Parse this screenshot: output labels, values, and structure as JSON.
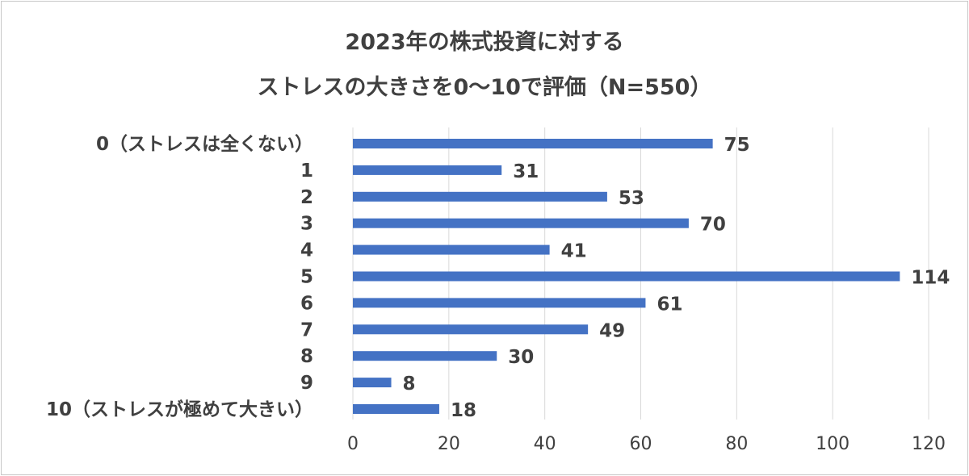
{
  "chart_data": {
    "type": "bar",
    "orientation": "horizontal",
    "title_lines": [
      "2023年の株式投資に対する",
      "ストレスの大きさを0～10で評価（N=550）"
    ],
    "categories": [
      "0（ストレスは全くない）",
      "1",
      "2",
      "3",
      "4",
      "5",
      "6",
      "7",
      "8",
      "9",
      "10（ストレスが極めて大きい）"
    ],
    "values": [
      75,
      31,
      53,
      70,
      41,
      114,
      61,
      49,
      30,
      8,
      18
    ],
    "xlim": [
      0,
      120
    ],
    "xticks": [
      0,
      20,
      40,
      60,
      80,
      100,
      120
    ],
    "grid": "vertical",
    "legend": "none",
    "data_labels": true
  },
  "colors": {
    "bar": "#4472C4",
    "grid": "#d9d9d9",
    "text": "#404040"
  }
}
